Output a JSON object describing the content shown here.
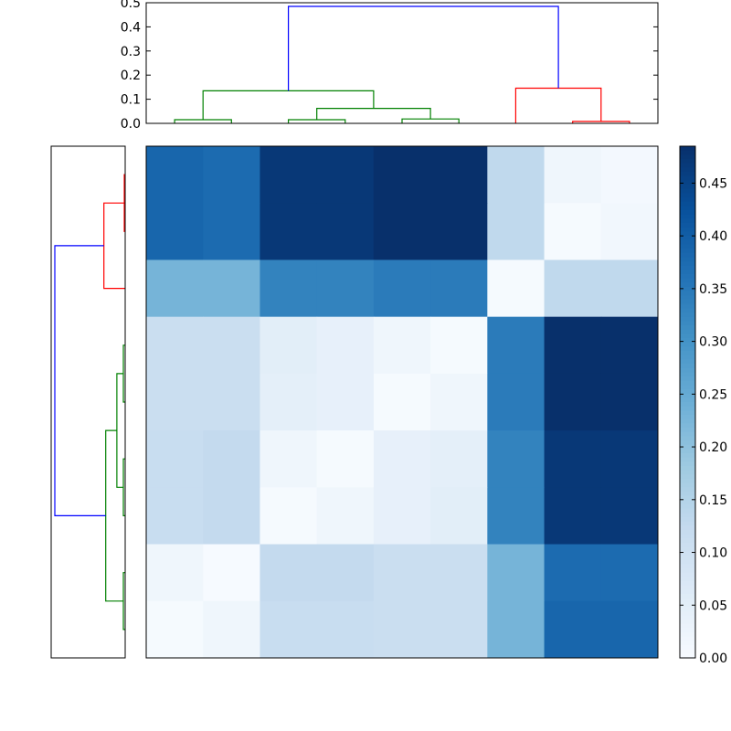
{
  "chart_data": [
    {
      "type": "dendrogram",
      "orientation": "top",
      "ylim": [
        0,
        0.5
      ],
      "yticks": [
        "0.0",
        "0.1",
        "0.2",
        "0.3",
        "0.4",
        "0.5"
      ],
      "ytick_values": [
        0,
        0.1,
        0.2,
        0.3,
        0.4,
        0.5
      ],
      "leaf_count": 9,
      "links": [
        {
          "x": [
            0.5,
            0.5,
            1.5,
            1.5
          ],
          "y": [
            0.0,
            0.015,
            0.015,
            0.0
          ],
          "color": "#008000"
        },
        {
          "x": [
            2.5,
            2.5,
            3.5,
            3.5
          ],
          "y": [
            0.0,
            0.015,
            0.015,
            0.0
          ],
          "color": "#008000"
        },
        {
          "x": [
            4.5,
            4.5,
            5.5,
            5.5
          ],
          "y": [
            0.0,
            0.018,
            0.018,
            0.0
          ],
          "color": "#008000"
        },
        {
          "x": [
            3.0,
            3.0,
            5.0,
            5.0
          ],
          "y": [
            0.015,
            0.062,
            0.062,
            0.018
          ],
          "color": "#008000"
        },
        {
          "x": [
            1.0,
            1.0,
            4.0,
            4.0
          ],
          "y": [
            0.015,
            0.135,
            0.135,
            0.062
          ],
          "color": "#008000"
        },
        {
          "x": [
            7.5,
            7.5,
            8.5,
            8.5
          ],
          "y": [
            0.0,
            0.008,
            0.008,
            0.0
          ],
          "color": "#ff0000"
        },
        {
          "x": [
            6.5,
            6.5,
            8.0,
            8.0
          ],
          "y": [
            0.0,
            0.146,
            0.146,
            0.008
          ],
          "color": "#ff0000"
        },
        {
          "x": [
            2.5,
            2.5,
            7.25,
            7.25
          ],
          "y": [
            0.135,
            0.485,
            0.485,
            0.146
          ],
          "color": "#0000ff"
        }
      ]
    },
    {
      "type": "dendrogram",
      "orientation": "left",
      "leaf_count": 9,
      "links": [
        {
          "x": [
            0.5,
            0.5,
            1.5,
            1.5
          ],
          "y": [
            0.0,
            0.01,
            0.01,
            0.0
          ],
          "color": "#ff0000"
        },
        {
          "x": [
            1.0,
            1.0,
            2.5,
            2.5
          ],
          "y": [
            0.01,
            0.23,
            0.23,
            0.0
          ],
          "color": "#ff0000"
        },
        {
          "x": [
            3.5,
            3.5,
            4.5,
            4.5
          ],
          "y": [
            0.0,
            0.02,
            0.02,
            0.0
          ],
          "color": "#008000"
        },
        {
          "x": [
            5.5,
            5.5,
            6.5,
            6.5
          ],
          "y": [
            0.0,
            0.02,
            0.02,
            0.0
          ],
          "color": "#008000"
        },
        {
          "x": [
            4.0,
            4.0,
            6.0,
            6.0
          ],
          "y": [
            0.02,
            0.09,
            0.09,
            0.02
          ],
          "color": "#008000"
        },
        {
          "x": [
            7.5,
            7.5,
            8.5,
            8.5
          ],
          "y": [
            0.0,
            0.02,
            0.02,
            0.0
          ],
          "color": "#008000"
        },
        {
          "x": [
            5.0,
            5.0,
            8.0,
            8.0
          ],
          "y": [
            0.09,
            0.21,
            0.21,
            0.02
          ],
          "color": "#008000"
        },
        {
          "x": [
            1.75,
            1.75,
            6.5,
            6.5
          ],
          "y": [
            0.23,
            0.76,
            0.76,
            0.21
          ],
          "color": "#0000ff"
        }
      ],
      "xlim_depth": 0.8
    },
    {
      "type": "heatmap",
      "rows": 9,
      "cols": 9,
      "values": [
        [
          0.385,
          0.375,
          0.47,
          0.47,
          0.485,
          0.485,
          0.13,
          0.02,
          0.01
        ],
        [
          0.385,
          0.375,
          0.47,
          0.47,
          0.485,
          0.485,
          0.13,
          0.005,
          0.015
        ],
        [
          0.23,
          0.23,
          0.33,
          0.33,
          0.345,
          0.345,
          0.005,
          0.13,
          0.13
        ],
        [
          0.11,
          0.11,
          0.05,
          0.04,
          0.02,
          0.005,
          0.345,
          0.485,
          0.485
        ],
        [
          0.11,
          0.11,
          0.045,
          0.04,
          0.005,
          0.02,
          0.345,
          0.485,
          0.485
        ],
        [
          0.115,
          0.125,
          0.02,
          0.005,
          0.04,
          0.045,
          0.33,
          0.47,
          0.47
        ],
        [
          0.115,
          0.125,
          0.005,
          0.02,
          0.04,
          0.05,
          0.33,
          0.47,
          0.47
        ],
        [
          0.02,
          0.003,
          0.125,
          0.125,
          0.11,
          0.11,
          0.23,
          0.375,
          0.375
        ],
        [
          0.005,
          0.02,
          0.115,
          0.115,
          0.11,
          0.11,
          0.23,
          0.385,
          0.385
        ]
      ],
      "colormap": "Blues",
      "vmin": 0.0,
      "vmax": 0.485
    },
    {
      "type": "colorbar",
      "colormap": "Blues",
      "ticks": [
        "0.00",
        "0.05",
        "0.10",
        "0.15",
        "0.20",
        "0.25",
        "0.30",
        "0.35",
        "0.40",
        "0.45"
      ],
      "tick_values": [
        0.0,
        0.05,
        0.1,
        0.15,
        0.2,
        0.25,
        0.3,
        0.35,
        0.4,
        0.45
      ],
      "vmin": 0.0,
      "vmax": 0.485
    }
  ]
}
